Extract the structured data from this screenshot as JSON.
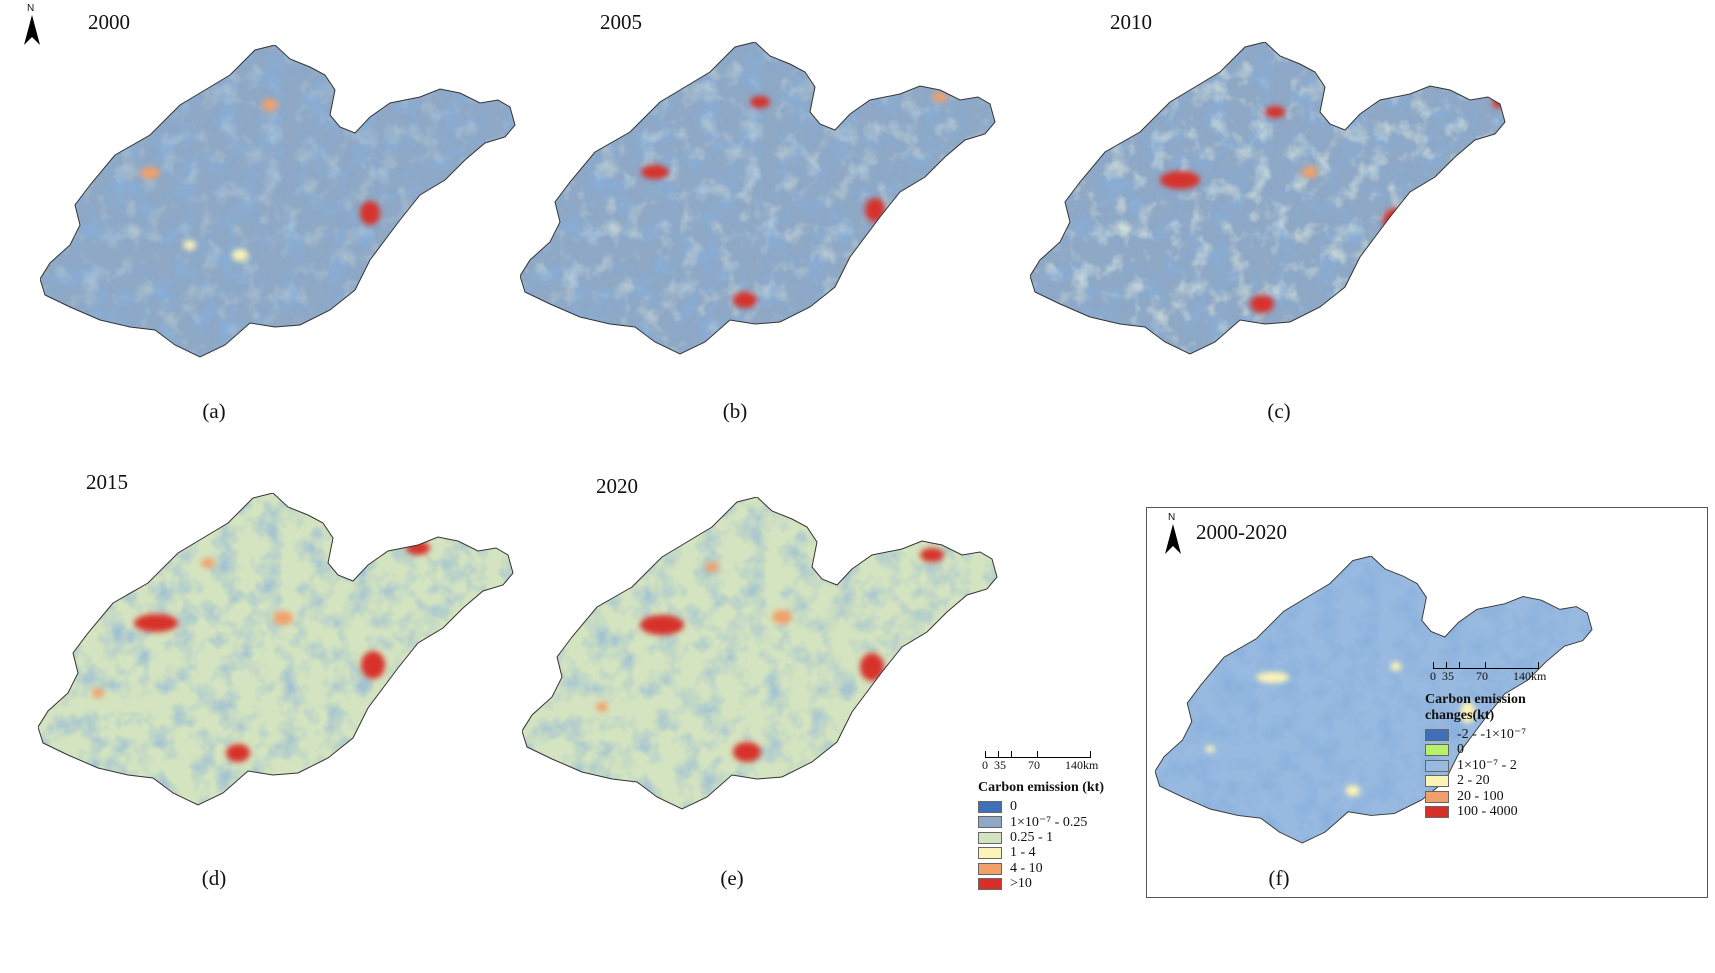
{
  "panels": [
    {
      "year": "2000",
      "caption": "(a)"
    },
    {
      "year": "2005",
      "caption": "(b)"
    },
    {
      "year": "2010",
      "caption": "(c)"
    },
    {
      "year": "2015",
      "caption": "(d)"
    },
    {
      "year": "2020",
      "caption": "(e)"
    },
    {
      "year": "2000-2020",
      "caption": "(f)"
    }
  ],
  "north_label": "N",
  "scale": {
    "labels": [
      "0",
      "35",
      "70",
      "140km"
    ]
  },
  "legend_emission": {
    "title": "Carbon emission (kt)",
    "items": [
      {
        "label": "0",
        "color": "#3e6fb8"
      },
      {
        "label": "1×10⁻⁷ - 0.25",
        "color": "#8ea8c6"
      },
      {
        "label": "0.25 - 1",
        "color": "#d4e4c0"
      },
      {
        "label": "1 - 4",
        "color": "#fbf4b6"
      },
      {
        "label": "4 - 10",
        "color": "#f2a06a"
      },
      {
        "label": ">10",
        "color": "#d7302a"
      }
    ]
  },
  "legend_change": {
    "title_line1": "Carbon emission",
    "title_line2": "changes(kt)",
    "items": [
      {
        "label": "-2 - -1×10⁻⁷",
        "color": "#3e6fb8"
      },
      {
        "label": "0",
        "color": "#b8f06a"
      },
      {
        "label": "1×10⁻⁷ - 2",
        "color": "#98b9e0"
      },
      {
        "label": "2 - 20",
        "color": "#fbf4b6"
      },
      {
        "label": "20 - 100",
        "color": "#f2a06a"
      },
      {
        "label": "100 - 4000",
        "color": "#d7302a"
      }
    ]
  }
}
